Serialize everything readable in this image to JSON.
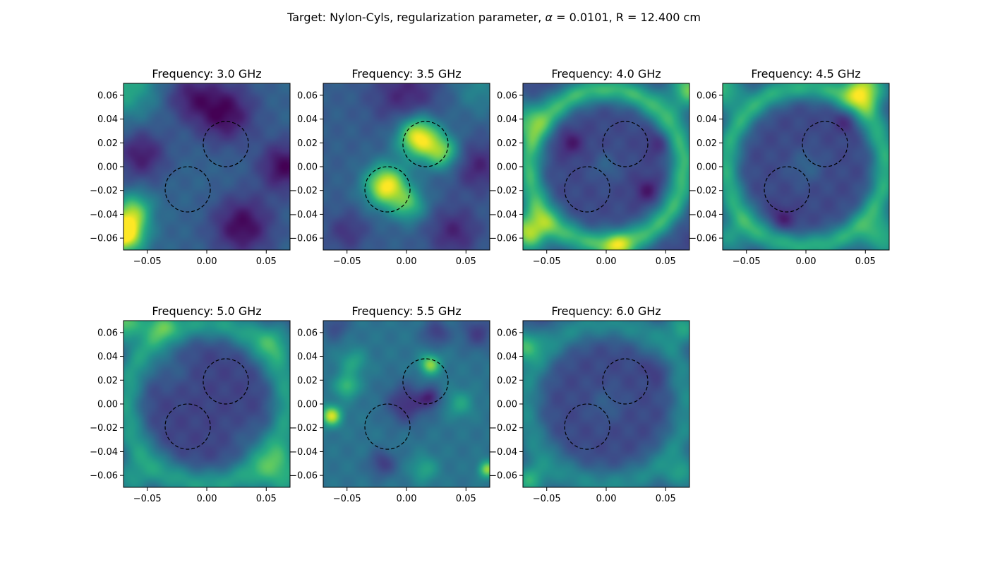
{
  "figure": {
    "title_prefix": "Target: Nylon-Cyls, regularization parameter, ",
    "title_alpha": "α",
    "title_suffix": " = 0.0101, R = 12.400 cm"
  },
  "colormap": [
    "#440154",
    "#472f7d",
    "#3b528b",
    "#2c728e",
    "#21918c",
    "#28ae80",
    "#5ec962",
    "#addc30",
    "#fde725"
  ],
  "chart_data": [
    {
      "type": "heatmap",
      "title": "Frequency: 3.0 GHz",
      "xlim": [
        -0.07,
        0.07
      ],
      "ylim": [
        -0.07,
        0.07
      ],
      "xticks": [
        "−0.05",
        "0.00",
        "0.05"
      ],
      "xtick_values": [
        -0.05,
        0.0,
        0.05
      ],
      "yticks": [
        "0.06",
        "0.04",
        "0.02",
        "0.00",
        "−0.02",
        "−0.04",
        "−0.06"
      ],
      "ytick_values": [
        0.06,
        0.04,
        0.02,
        0.0,
        -0.02,
        -0.04,
        -0.06
      ],
      "base": 0.32,
      "blobs": [
        {
          "x": 0.015,
          "y": 0.045,
          "s": 0.018,
          "a": -0.3
        },
        {
          "x": -0.055,
          "y": 0.01,
          "s": 0.015,
          "a": -0.25
        },
        {
          "x": 0.065,
          "y": 0.0,
          "s": 0.015,
          "a": -0.3
        },
        {
          "x": 0.03,
          "y": -0.05,
          "s": 0.018,
          "a": -0.3
        },
        {
          "x": -0.015,
          "y": 0.06,
          "s": 0.015,
          "a": -0.2
        },
        {
          "x": -0.07,
          "y": -0.055,
          "s": 0.012,
          "a": 0.85
        },
        {
          "x": -0.06,
          "y": -0.035,
          "s": 0.01,
          "a": 0.35
        },
        {
          "x": -0.07,
          "y": 0.07,
          "s": 0.02,
          "a": 0.3
        }
      ],
      "circles": [
        {
          "x": 0.016,
          "y": 0.019,
          "r": 0.019
        },
        {
          "x": -0.016,
          "y": -0.019,
          "r": 0.019
        }
      ]
    },
    {
      "type": "heatmap",
      "title": "Frequency: 3.5 GHz",
      "xlim": [
        -0.07,
        0.07
      ],
      "ylim": [
        -0.07,
        0.07
      ],
      "xticks": [
        "−0.05",
        "0.00",
        "0.05"
      ],
      "xtick_values": [
        -0.05,
        0.0,
        0.05
      ],
      "yticks": [
        "0.06",
        "0.04",
        "0.02",
        "0.00",
        "−0.02",
        "−0.04",
        "−0.06"
      ],
      "ytick_values": [
        0.06,
        0.04,
        0.02,
        0.0,
        -0.02,
        -0.04,
        -0.06
      ],
      "base": 0.3,
      "blobs": [
        {
          "x": 0.01,
          "y": 0.025,
          "s": 0.012,
          "a": 0.72
        },
        {
          "x": 0.03,
          "y": 0.012,
          "s": 0.01,
          "a": 0.45
        },
        {
          "x": -0.017,
          "y": -0.016,
          "s": 0.012,
          "a": 0.7
        },
        {
          "x": 0.002,
          "y": -0.032,
          "s": 0.01,
          "a": 0.35
        },
        {
          "x": 0.0,
          "y": 0.06,
          "s": 0.02,
          "a": -0.2
        },
        {
          "x": 0.06,
          "y": 0.0,
          "s": 0.015,
          "a": -0.2
        },
        {
          "x": 0.04,
          "y": -0.055,
          "s": 0.015,
          "a": -0.2
        },
        {
          "x": -0.05,
          "y": -0.055,
          "s": 0.012,
          "a": -0.15
        },
        {
          "x": 0.06,
          "y": 0.065,
          "s": 0.015,
          "a": 0.15
        }
      ],
      "circles": [
        {
          "x": 0.016,
          "y": 0.019,
          "r": 0.019
        },
        {
          "x": -0.016,
          "y": -0.019,
          "r": 0.019
        }
      ]
    },
    {
      "type": "heatmap",
      "title": "Frequency: 4.0 GHz",
      "xlim": [
        -0.07,
        0.07
      ],
      "ylim": [
        -0.07,
        0.07
      ],
      "xticks": [
        "−0.05",
        "0.00",
        "0.05"
      ],
      "xtick_values": [
        -0.05,
        0.0,
        0.05
      ],
      "yticks": [
        "0.06",
        "0.04",
        "0.02",
        "0.00",
        "−0.02",
        "−0.04",
        "−0.06"
      ],
      "ytick_values": [
        0.06,
        0.04,
        0.02,
        0.0,
        -0.02,
        -0.04,
        -0.06
      ],
      "base": 0.22,
      "ring": {
        "cx": 0.0,
        "cy": 0.0,
        "r": 0.065,
        "w": 0.008,
        "a": 0.45
      },
      "blobs": [
        {
          "x": -0.065,
          "y": -0.055,
          "s": 0.012,
          "a": 0.65
        },
        {
          "x": 0.07,
          "y": 0.065,
          "s": 0.012,
          "a": 0.55
        },
        {
          "x": -0.07,
          "y": 0.04,
          "s": 0.012,
          "a": 0.35
        },
        {
          "x": 0.01,
          "y": -0.07,
          "s": 0.01,
          "a": 0.35
        },
        {
          "x": -0.03,
          "y": 0.02,
          "s": 0.008,
          "a": -0.15
        },
        {
          "x": 0.035,
          "y": -0.02,
          "s": 0.008,
          "a": -0.15
        },
        {
          "x": 0.045,
          "y": 0.02,
          "s": 0.008,
          "a": -0.12
        },
        {
          "x": 0.0,
          "y": 0.0,
          "s": 0.008,
          "a": 0.1
        }
      ],
      "circles": [
        {
          "x": 0.016,
          "y": 0.019,
          "r": 0.019
        },
        {
          "x": -0.016,
          "y": -0.019,
          "r": 0.019
        }
      ]
    },
    {
      "type": "heatmap",
      "title": "Frequency: 4.5 GHz",
      "xlim": [
        -0.07,
        0.07
      ],
      "ylim": [
        -0.07,
        0.07
      ],
      "xticks": [
        "−0.05",
        "0.00",
        "0.05"
      ],
      "xtick_values": [
        -0.05,
        0.0,
        0.05
      ],
      "yticks": [
        "0.06",
        "0.04",
        "0.02",
        "0.00",
        "−0.02",
        "−0.04",
        "−0.06"
      ],
      "ytick_values": [
        0.06,
        0.04,
        0.02,
        0.0,
        -0.02,
        -0.04,
        -0.06
      ],
      "base": 0.22,
      "ring": {
        "cx": 0.0,
        "cy": 0.0,
        "r": 0.067,
        "w": 0.008,
        "a": 0.4
      },
      "blobs": [
        {
          "x": 0.05,
          "y": 0.065,
          "s": 0.012,
          "a": 0.65
        },
        {
          "x": -0.07,
          "y": 0.065,
          "s": 0.012,
          "a": 0.45
        },
        {
          "x": 0.065,
          "y": -0.06,
          "s": 0.012,
          "a": 0.4
        },
        {
          "x": -0.065,
          "y": -0.06,
          "s": 0.012,
          "a": 0.3
        },
        {
          "x": 0.035,
          "y": 0.04,
          "s": 0.008,
          "a": -0.15
        },
        {
          "x": -0.02,
          "y": -0.045,
          "s": 0.008,
          "a": -0.15
        },
        {
          "x": 0.0,
          "y": 0.0,
          "s": 0.01,
          "a": 0.1
        }
      ],
      "circles": [
        {
          "x": 0.016,
          "y": 0.019,
          "r": 0.019
        },
        {
          "x": -0.016,
          "y": -0.019,
          "r": 0.019
        }
      ]
    },
    {
      "type": "heatmap",
      "title": "Frequency: 5.0 GHz",
      "xlim": [
        -0.07,
        0.07
      ],
      "ylim": [
        -0.07,
        0.07
      ],
      "xticks": [
        "−0.05",
        "0.00",
        "0.05"
      ],
      "xtick_values": [
        -0.05,
        0.0,
        0.05
      ],
      "yticks": [
        "0.06",
        "0.04",
        "0.02",
        "0.00",
        "−0.02",
        "−0.04",
        "−0.06"
      ],
      "ytick_values": [
        0.06,
        0.04,
        0.02,
        0.0,
        -0.02,
        -0.04,
        -0.06
      ],
      "base": 0.2,
      "ring": {
        "cx": 0.0,
        "cy": 0.0,
        "r": 0.068,
        "w": 0.01,
        "a": 0.35
      },
      "blobs": [
        {
          "x": -0.07,
          "y": 0.07,
          "s": 0.012,
          "a": 0.55
        },
        {
          "x": -0.04,
          "y": 0.068,
          "s": 0.01,
          "a": 0.3
        },
        {
          "x": 0.065,
          "y": -0.06,
          "s": 0.015,
          "a": 0.4
        },
        {
          "x": -0.065,
          "y": -0.065,
          "s": 0.012,
          "a": 0.3
        },
        {
          "x": 0.06,
          "y": 0.055,
          "s": 0.012,
          "a": 0.25
        },
        {
          "x": -0.03,
          "y": 0.03,
          "s": 0.012,
          "a": 0.1
        },
        {
          "x": 0.035,
          "y": -0.03,
          "s": 0.012,
          "a": 0.08
        }
      ],
      "circles": [
        {
          "x": 0.016,
          "y": 0.019,
          "r": 0.019
        },
        {
          "x": -0.016,
          "y": -0.019,
          "r": 0.019
        }
      ]
    },
    {
      "type": "heatmap",
      "title": "Frequency: 5.5 GHz",
      "xlim": [
        -0.07,
        0.07
      ],
      "ylim": [
        -0.07,
        0.07
      ],
      "xticks": [
        "−0.05",
        "0.00",
        "0.05"
      ],
      "xtick_values": [
        -0.05,
        0.0,
        0.05
      ],
      "yticks": [
        "0.06",
        "0.04",
        "0.02",
        "0.00",
        "−0.02",
        "−0.04",
        "−0.06"
      ],
      "ytick_values": [
        0.06,
        0.04,
        0.02,
        0.0,
        -0.02,
        -0.04,
        -0.06
      ],
      "base": 0.38,
      "blobs": [
        {
          "x": -0.063,
          "y": -0.01,
          "s": 0.006,
          "a": 0.55
        },
        {
          "x": -0.05,
          "y": 0.015,
          "s": 0.007,
          "a": 0.3
        },
        {
          "x": 0.02,
          "y": 0.033,
          "s": 0.006,
          "a": 0.45
        },
        {
          "x": 0.068,
          "y": -0.055,
          "s": 0.005,
          "a": 0.45
        },
        {
          "x": -0.045,
          "y": 0.035,
          "s": 0.008,
          "a": 0.2
        },
        {
          "x": 0.045,
          "y": 0.0,
          "s": 0.008,
          "a": 0.2
        },
        {
          "x": 0.015,
          "y": -0.055,
          "s": 0.008,
          "a": 0.2
        },
        {
          "x": 0.0,
          "y": 0.0,
          "s": 0.012,
          "a": -0.25
        },
        {
          "x": -0.02,
          "y": -0.05,
          "s": 0.008,
          "a": -0.2
        },
        {
          "x": 0.025,
          "y": 0.06,
          "s": 0.008,
          "a": -0.2
        },
        {
          "x": 0.06,
          "y": 0.06,
          "s": 0.01,
          "a": -0.2
        },
        {
          "x": -0.06,
          "y": 0.065,
          "s": 0.008,
          "a": -0.15
        },
        {
          "x": 0.02,
          "y": 0.005,
          "s": 0.006,
          "a": -0.25
        }
      ],
      "circles": [
        {
          "x": 0.016,
          "y": 0.019,
          "r": 0.019
        },
        {
          "x": -0.016,
          "y": -0.019,
          "r": 0.019
        }
      ]
    },
    {
      "type": "heatmap",
      "title": "Frequency: 6.0 GHz",
      "xlim": [
        -0.07,
        0.07
      ],
      "ylim": [
        -0.07,
        0.07
      ],
      "xticks": [
        "−0.05",
        "0.00",
        "0.05"
      ],
      "xtick_values": [
        -0.05,
        0.0,
        0.05
      ],
      "yticks": [
        "0.06",
        "0.04",
        "0.02",
        "0.00",
        "−0.02",
        "−0.04",
        "−0.06"
      ],
      "ytick_values": [
        0.06,
        0.04,
        0.02,
        0.0,
        -0.02,
        -0.04,
        -0.06
      ],
      "base": 0.22,
      "ring": {
        "cx": 0.0,
        "cy": 0.0,
        "r": 0.068,
        "w": 0.01,
        "a": 0.25
      },
      "blobs": [
        {
          "x": -0.07,
          "y": 0.05,
          "s": 0.01,
          "a": 0.4
        },
        {
          "x": 0.065,
          "y": 0.065,
          "s": 0.01,
          "a": 0.35
        },
        {
          "x": -0.065,
          "y": -0.065,
          "s": 0.01,
          "a": 0.4
        },
        {
          "x": 0.065,
          "y": -0.06,
          "s": 0.01,
          "a": 0.3
        },
        {
          "x": 0.0,
          "y": 0.0,
          "s": 0.01,
          "a": 0.08
        },
        {
          "x": 0.045,
          "y": 0.03,
          "s": 0.008,
          "a": -0.1
        }
      ],
      "circles": [
        {
          "x": 0.016,
          "y": 0.019,
          "r": 0.019
        },
        {
          "x": -0.016,
          "y": -0.019,
          "r": 0.019
        }
      ]
    }
  ]
}
